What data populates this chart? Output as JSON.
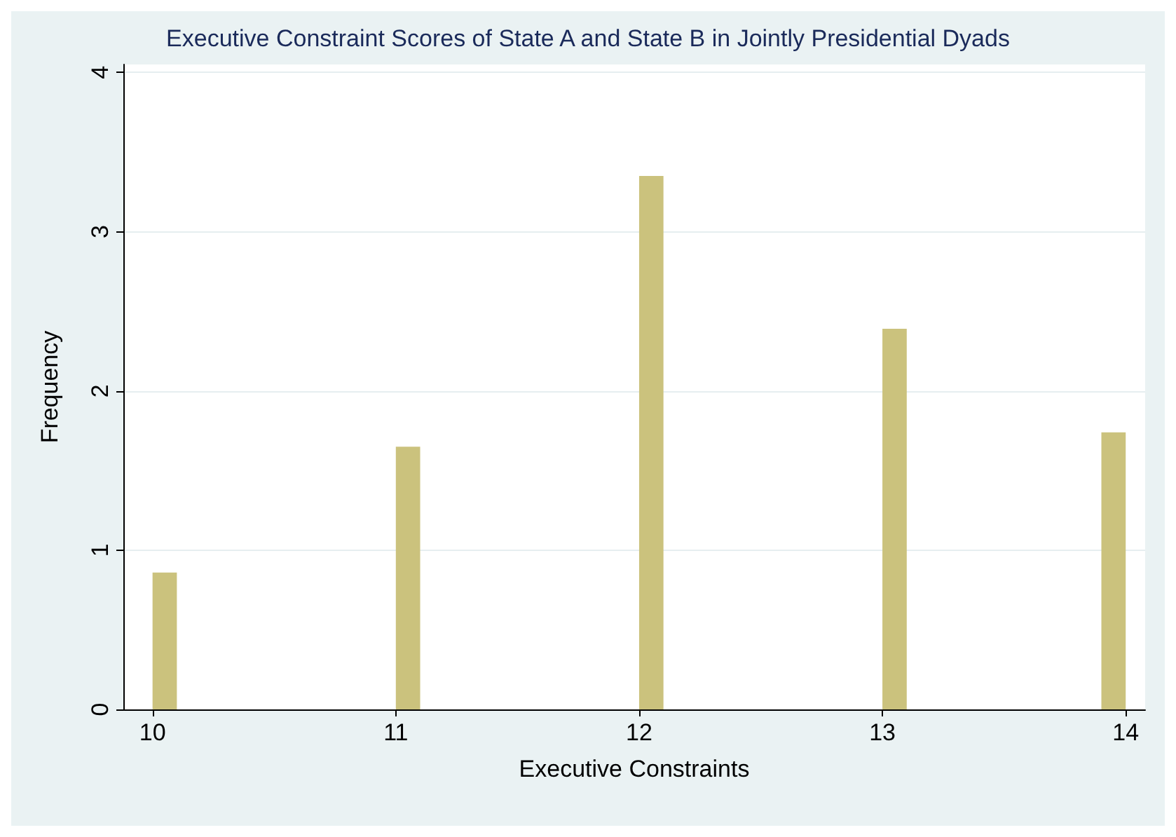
{
  "chart_data": {
    "type": "histogram",
    "title": "Executive Constraint Scores of State A and State B in Jointly Presidential Dyads",
    "xlabel": "Executive Constraints",
    "ylabel": "Frequency",
    "bins": [
      10,
      10.1,
      10.2,
      10.3,
      10.4,
      10.5,
      10.6,
      10.7,
      10.8,
      10.9,
      11,
      11.1,
      11.2,
      11.3,
      11.4,
      11.5,
      11.6,
      11.7,
      11.8,
      11.9,
      12,
      12.1,
      12.2,
      12.3,
      12.4,
      12.5,
      12.6,
      12.7,
      12.8,
      12.9,
      13,
      13.1,
      13.2,
      13.3,
      13.4,
      13.5,
      13.6,
      13.7,
      13.8,
      13.9,
      14
    ],
    "values": [
      0.86,
      0,
      0,
      0,
      0,
      0,
      0,
      0,
      0,
      0,
      1.65,
      0,
      0,
      0,
      0,
      0,
      0,
      0,
      0,
      0,
      3.35,
      0,
      0,
      0,
      0,
      0,
      0,
      0,
      0,
      0,
      2.39,
      0,
      0,
      0,
      0,
      0,
      0,
      0,
      0,
      1.74
    ],
    "color": "#cbc27d",
    "xlim": [
      9.88,
      14.08
    ],
    "xticks": [
      10,
      11,
      12,
      13,
      14
    ],
    "ylim": [
      0,
      4.05
    ],
    "yticks": [
      0,
      1,
      2,
      3,
      4
    ],
    "grid": "y"
  }
}
